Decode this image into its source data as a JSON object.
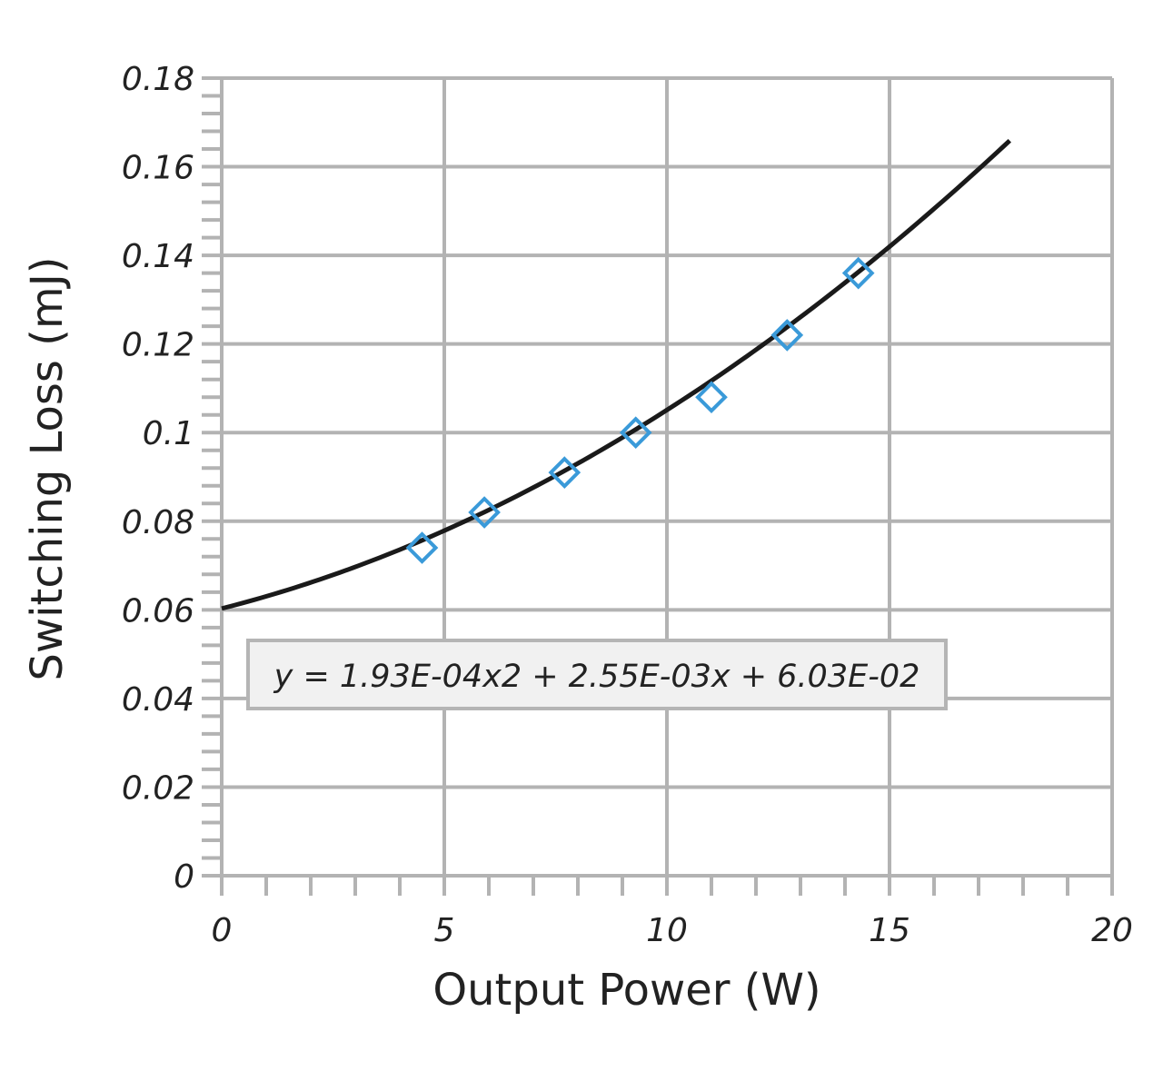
{
  "chart_data": {
    "type": "scatter",
    "xlabel": "Output Power (W)",
    "ylabel": "Switching Loss (mJ)",
    "xlim": [
      0,
      20
    ],
    "ylim": [
      0,
      0.18
    ],
    "x_ticks": [
      0,
      5,
      10,
      15,
      20
    ],
    "y_ticks": [
      0,
      0.02,
      0.04,
      0.06,
      0.08,
      0.1,
      0.12,
      0.14,
      0.16,
      0.18
    ],
    "x_tick_labels": [
      "0",
      "5",
      "10",
      "15",
      "20"
    ],
    "y_tick_labels": [
      "0",
      "0.02",
      "0.04",
      "0.06",
      "0.08",
      "0.1",
      "0.12",
      "0.14",
      "0.16",
      "0.18"
    ],
    "grid": true,
    "series": [
      {
        "marker": "diamond-open",
        "color": "#3a9ad9",
        "x": [
          4.5,
          5.9,
          7.7,
          9.3,
          11.0,
          12.7,
          14.3
        ],
        "y": [
          0.074,
          0.082,
          0.091,
          0.1,
          0.108,
          0.122,
          0.136
        ]
      }
    ],
    "trendline": {
      "type": "polynomial",
      "coefficients": [
        0.000193,
        0.00255,
        0.0603
      ],
      "x_range": [
        0,
        17.7
      ],
      "color": "#1a1a1a",
      "equation_label": "y = 1.93E-04x2 + 2.55E-03x + 6.03E-02"
    }
  }
}
